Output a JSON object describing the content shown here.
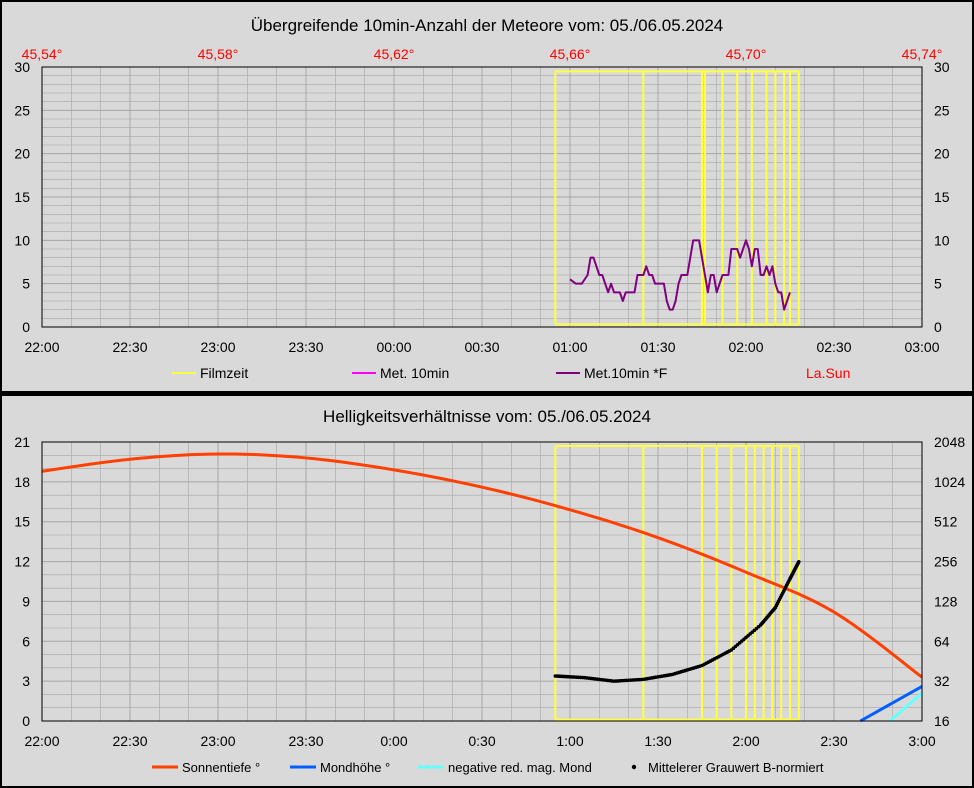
{
  "colors": {
    "panel_bg": "#d9d9d9",
    "plot_bg": "#d9d9d9",
    "grid": "#a6a6a6",
    "filmzeit": "#ffff40",
    "met10": "#ff00ff",
    "met10f": "#800080",
    "lasun": "#ff0000",
    "sonnentiefe": "#ff4000",
    "mondhoehe": "#0060ff",
    "negmond": "#66ffff",
    "grauwert": "#000000"
  },
  "chart_data": [
    {
      "type": "line",
      "title": "Übergreifende 10min-Anzahl der Meteore vom: 05./06.05.2024",
      "x_tick_labels": [
        "22:00",
        "22:30",
        "23:00",
        "23:30",
        "00:00",
        "00:30",
        "01:00",
        "01:30",
        "02:00",
        "02:30",
        "03:00"
      ],
      "x_range_hours": [
        22,
        27
      ],
      "y_left_range": [
        0,
        30
      ],
      "y_left_ticks": [
        "0",
        "5",
        "10",
        "15",
        "20",
        "25",
        "30"
      ],
      "y_right_ticks": [
        "0",
        "5",
        "10",
        "15",
        "20",
        "25",
        "30"
      ],
      "top_axis_label_name": "La.Sun",
      "top_axis_ticks": [
        "45,54°",
        "45,58°",
        "45,62°",
        "45,66°",
        "45,70°",
        "45,74°"
      ],
      "grid": true,
      "legend_position": "bottom",
      "legend": [
        "Filmzeit",
        "Met. 10min",
        "Met.10min *F",
        "La.Sun"
      ],
      "series": [
        {
          "name": "Filmzeit",
          "kind": "rectangles",
          "y_top": 29.5,
          "y_bottom": 0.3,
          "boundaries": [
            "00:55",
            "01:25",
            "01:45",
            "01:46",
            "01:52",
            "01:57",
            "02:02",
            "02:07",
            "02:10",
            "02:13",
            "02:15",
            "02:18"
          ]
        },
        {
          "name": "Met.10min *F",
          "kind": "line",
          "points": [
            [
              "01:00",
              5.5
            ],
            [
              "01:02",
              5
            ],
            [
              "01:04",
              5
            ],
            [
              "01:06",
              6
            ],
            [
              "01:07",
              8
            ],
            [
              "01:08",
              8
            ],
            [
              "01:09",
              7
            ],
            [
              "01:10",
              6
            ],
            [
              "01:11",
              6
            ],
            [
              "01:12",
              5
            ],
            [
              "01:13",
              4
            ],
            [
              "01:14",
              5
            ],
            [
              "01:15",
              4
            ],
            [
              "01:16",
              4
            ],
            [
              "01:17",
              4
            ],
            [
              "01:18",
              3
            ],
            [
              "01:19",
              4
            ],
            [
              "01:20",
              4
            ],
            [
              "01:21",
              4
            ],
            [
              "01:22",
              4
            ],
            [
              "01:23",
              6
            ],
            [
              "01:24",
              6
            ],
            [
              "01:25",
              6
            ],
            [
              "01:26",
              7
            ],
            [
              "01:27",
              6
            ],
            [
              "01:28",
              6
            ],
            [
              "01:29",
              5
            ],
            [
              "01:30",
              5
            ],
            [
              "01:31",
              5
            ],
            [
              "01:32",
              5
            ],
            [
              "01:33",
              3
            ],
            [
              "01:34",
              2
            ],
            [
              "01:35",
              2
            ],
            [
              "01:36",
              3
            ],
            [
              "01:37",
              5
            ],
            [
              "01:38",
              6
            ],
            [
              "01:39",
              6
            ],
            [
              "01:40",
              6
            ],
            [
              "01:41",
              8
            ],
            [
              "01:42",
              10
            ],
            [
              "01:43",
              10
            ],
            [
              "01:44",
              10
            ],
            [
              "01:45",
              8
            ],
            [
              "01:46",
              6
            ],
            [
              "01:47",
              4
            ],
            [
              "01:48",
              6
            ],
            [
              "01:49",
              6
            ],
            [
              "01:50",
              4
            ],
            [
              "01:51",
              5
            ],
            [
              "01:52",
              6
            ],
            [
              "01:53",
              6
            ],
            [
              "01:54",
              6
            ],
            [
              "01:55",
              9
            ],
            [
              "01:56",
              9
            ],
            [
              "01:57",
              9
            ],
            [
              "01:58",
              8
            ],
            [
              "01:59",
              9
            ],
            [
              "02:00",
              10
            ],
            [
              "02:01",
              9
            ],
            [
              "02:02",
              7
            ],
            [
              "02:03",
              9
            ],
            [
              "02:04",
              9
            ],
            [
              "02:05",
              6
            ],
            [
              "02:06",
              6
            ],
            [
              "02:07",
              7
            ],
            [
              "02:08",
              6
            ],
            [
              "02:09",
              7
            ],
            [
              "02:10",
              5
            ],
            [
              "02:11",
              4
            ],
            [
              "02:12",
              4
            ],
            [
              "02:13",
              2
            ],
            [
              "02:14",
              3
            ],
            [
              "02:15",
              4
            ]
          ]
        }
      ]
    },
    {
      "type": "line",
      "title": "Helligkeitsverhältnisse vom: 05./06.05.2024",
      "x_tick_labels": [
        "22:00",
        "22:30",
        "23:00",
        "23:30",
        "0:00",
        "0:30",
        "1:00",
        "1:30",
        "2:00",
        "2:30",
        "3:00"
      ],
      "x_range_hours": [
        22,
        27
      ],
      "y_left_range": [
        0,
        21
      ],
      "y_left_ticks": [
        "0",
        "3",
        "6",
        "9",
        "12",
        "15",
        "18",
        "21"
      ],
      "y_right_log2_range": [
        16,
        2048
      ],
      "y_right_ticks": [
        "16",
        "32",
        "64",
        "128",
        "256",
        "512",
        "1024",
        "2048"
      ],
      "grid": true,
      "legend_position": "bottom",
      "legend": [
        "Sonnentiefe °",
        "Mondhöhe °",
        "negative red. mag. Mond",
        "Mittelerer Grauwert B-normiert"
      ],
      "series": [
        {
          "name": "Filmzeit",
          "kind": "rectangles",
          "y_top": 20.7,
          "y_bottom": 0.1,
          "boundaries": [
            "00:55",
            "01:25",
            "01:45",
            "01:50",
            "01:55",
            "02:00",
            "02:03",
            "02:06",
            "02:09",
            "02:12",
            "02:15",
            "02:18"
          ]
        },
        {
          "name": "Sonnentiefe °",
          "kind": "line",
          "points": [
            [
              "22:00",
              18.8
            ],
            [
              "22:30",
              19.7
            ],
            [
              "23:00",
              20.1
            ],
            [
              "23:30",
              19.8
            ],
            [
              "00:00",
              18.9
            ],
            [
              "00:30",
              17.6
            ],
            [
              "01:00",
              15.9
            ],
            [
              "01:30",
              13.8
            ],
            [
              "02:00",
              11.2
            ],
            [
              "02:30",
              8.2
            ],
            [
              "03:00",
              3.3
            ]
          ]
        },
        {
          "name": "Mondhöhe °",
          "kind": "line",
          "points": [
            [
              "02:39",
              0
            ],
            [
              "03:00",
              2.6
            ]
          ]
        },
        {
          "name": "negative red. mag. Mond",
          "kind": "line",
          "points": [
            [
              "02:49",
              0
            ],
            [
              "03:00",
              2.1
            ]
          ]
        },
        {
          "name": "Mittelerer Grauwert B-normiert",
          "kind": "dots_right_axis",
          "points": [
            [
              "00:55",
              35
            ],
            [
              "01:05",
              34
            ],
            [
              "01:15",
              32
            ],
            [
              "01:25",
              33
            ],
            [
              "01:35",
              36
            ],
            [
              "01:45",
              42
            ],
            [
              "01:55",
              55
            ],
            [
              "02:05",
              85
            ],
            [
              "02:10",
              115
            ],
            [
              "02:15",
              190
            ],
            [
              "02:18",
              255
            ]
          ]
        }
      ]
    }
  ]
}
